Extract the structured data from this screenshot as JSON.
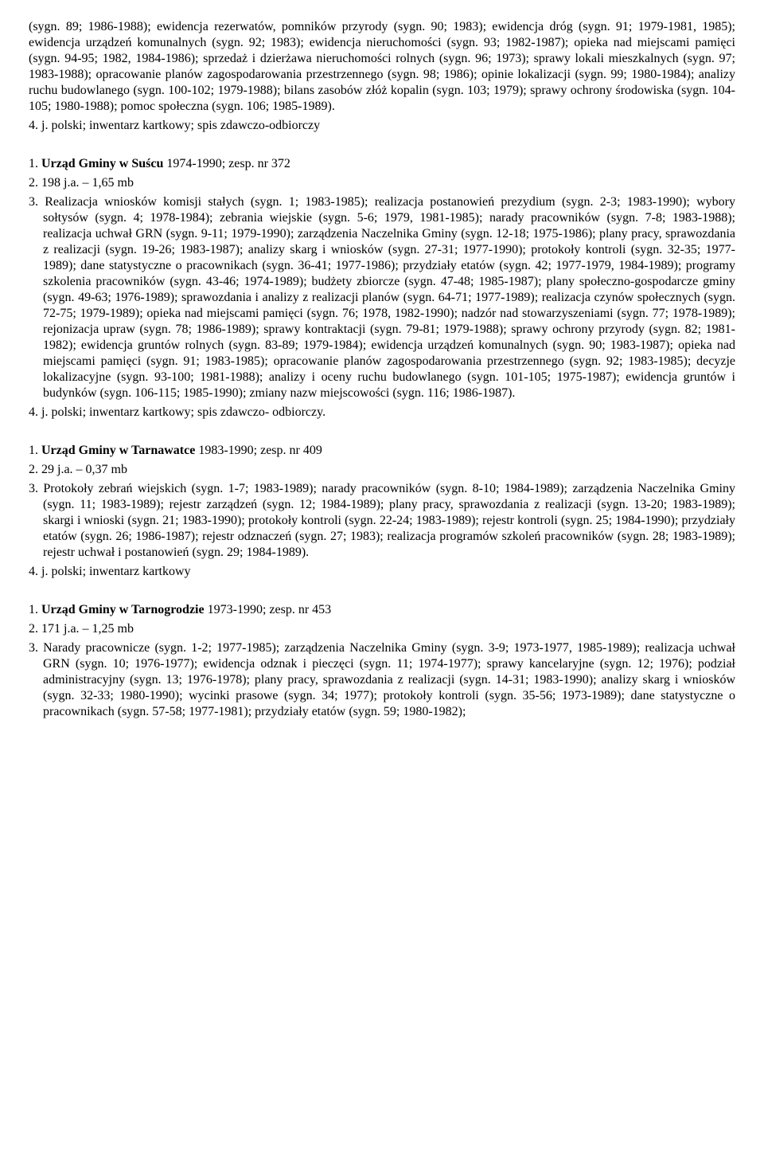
{
  "topBlock": {
    "paragraph": "(sygn. 89; 1986-1988); ewidencja rezerwatów, pomników przyrody (sygn. 90; 1983); ewidencja dróg (sygn. 91; 1979-1981, 1985); ewidencja urządzeń komunalnych (sygn. 92; 1983); ewidencja nieruchomości (sygn. 93; 1982-1987); opieka nad miejscami pamięci (sygn. 94-95; 1982, 1984-1986); sprzedaż i dzierżawa nieruchomości rolnych (sygn. 96; 1973); sprawy lokali mieszkalnych (sygn. 97; 1983-1988); opracowanie planów zagospodarowania przestrzennego (sygn. 98; 1986); opinie lokalizacji (sygn. 99; 1980-1984); analizy ruchu budowlanego (sygn. 100-102; 1979-1988); bilans zasobów złóż kopalin (sygn. 103; 1979); sprawy ochrony środowiska (sygn. 104-105; 1980-1988); pomoc społeczna (sygn. 106; 1985-1989).",
    "line4": "4. j. polski; inwentarz kartkowy; spis zdawczo-odbiorczy"
  },
  "entries": [
    {
      "title_num": "1. ",
      "title_bold": "Urząd Gminy w Suścu",
      "title_rest": " 1974-1990; zesp. nr 372",
      "line2": "2. 198 j.a. – 1,65 mb",
      "line3": "3. Realizacja wniosków komisji stałych (sygn. 1; 1983-1985); realizacja postanowień prezydium (sygn. 2-3; 1983-1990); wybory sołtysów (sygn. 4; 1978-1984); zebrania wiejskie (sygn. 5-6; 1979, 1981-1985); narady pracowników (sygn. 7-8; 1983-1988); realizacja uchwał GRN (sygn. 9-11; 1979-1990); zarządzenia Naczelnika Gminy (sygn. 12-18; 1975-1986); plany pracy, sprawozdania z realizacji (sygn. 19-26; 1983-1987); analizy skarg i wniosków (sygn. 27-31; 1977-1990); protokoły kontroli (sygn. 32-35; 1977-1989); dane statystyczne o pracownikach (sygn. 36-41; 1977-1986); przydziały etatów (sygn. 42; 1977-1979, 1984-1989); programy szkolenia pracowników (sygn. 43-46; 1974-1989); budżety zbiorcze (sygn. 47-48; 1985-1987); plany społeczno-gospodarcze gminy (sygn. 49-63; 1976-1989); sprawozdania i analizy z realizacji planów (sygn. 64-71; 1977-1989); realizacja czynów społecznych (sygn. 72-75; 1979-1989); opieka nad miejscami pamięci (sygn. 76; 1978, 1982-1990); nadzór nad stowarzyszeniami (sygn. 77; 1978-1989); rejonizacja upraw (sygn. 78; 1986-1989); sprawy kontraktacji (sygn. 79-81; 1979-1988); sprawy ochrony przyrody (sygn. 82; 1981-1982); ewidencja gruntów rolnych (sygn. 83-89; 1979-1984); ewidencja urządzeń komunalnych (sygn. 90; 1983-1987); opieka nad miejscami pamięci (sygn. 91; 1983-1985); opracowanie planów zagospodarowania przestrzennego (sygn. 92; 1983-1985); decyzje lokalizacyjne (sygn. 93-100; 1981-1988); analizy i oceny ruchu budowlanego (sygn. 101-105; 1975-1987); ewidencja gruntów i budynków (sygn. 106-115; 1985-1990); zmiany nazw miejscowości (sygn. 116; 1986-1987).",
      "line4": "4. j. polski; inwentarz kartkowy; spis zdawczo- odbiorczy."
    },
    {
      "title_num": "1. ",
      "title_bold": "Urząd Gminy w Tarnawatce",
      "title_rest": " 1983-1990; zesp. nr 409",
      "line2": "2. 29 j.a. – 0,37 mb",
      "line3": "3. Protokoły zebrań wiejskich (sygn. 1-7; 1983-1989); narady pracowników (sygn. 8-10; 1984-1989); zarządzenia Naczelnika Gminy (sygn. 11; 1983-1989); rejestr zarządzeń (sygn. 12; 1984-1989); plany pracy, sprawozdania z realizacji (sygn. 13-20; 1983-1989); skargi i wnioski (sygn. 21; 1983-1990); protokoły kontroli (sygn. 22-24; 1983-1989); rejestr kontroli (sygn. 25; 1984-1990); przydziały etatów (sygn. 26; 1986-1987); rejestr odznaczeń (sygn. 27; 1983); realizacja programów szkoleń pracowników (sygn. 28; 1983-1989); rejestr uchwał i postanowień (sygn. 29; 1984-1989).",
      "line4": "4. j. polski; inwentarz kartkowy"
    },
    {
      "title_num": "1. ",
      "title_bold": "Urząd Gminy w Tarnogrodzie",
      "title_rest": " 1973-1990; zesp. nr 453",
      "line2": "2. 171 j.a. – 1,25 mb",
      "line3": "3. Narady pracownicze (sygn. 1-2; 1977-1985); zarządzenia Naczelnika Gminy (sygn. 3-9; 1973-1977, 1985-1989); realizacja uchwał GRN (sygn. 10; 1976-1977); ewidencja odznak i pieczęci (sygn. 11; 1974-1977); sprawy kancelaryjne (sygn. 12; 1976); podział administracyjny (sygn. 13; 1976-1978); plany pracy, sprawozdania z realizacji (sygn. 14-31; 1983-1990); analizy skarg i wniosków (sygn. 32-33; 1980-1990); wycinki prasowe (sygn. 34; 1977); protokoły kontroli (sygn. 35-56; 1973-1989); dane statystyczne o pracownikach (sygn. 57-58; 1977-1981); przydziały etatów (sygn. 59; 1980-1982);",
      "line4": ""
    }
  ]
}
